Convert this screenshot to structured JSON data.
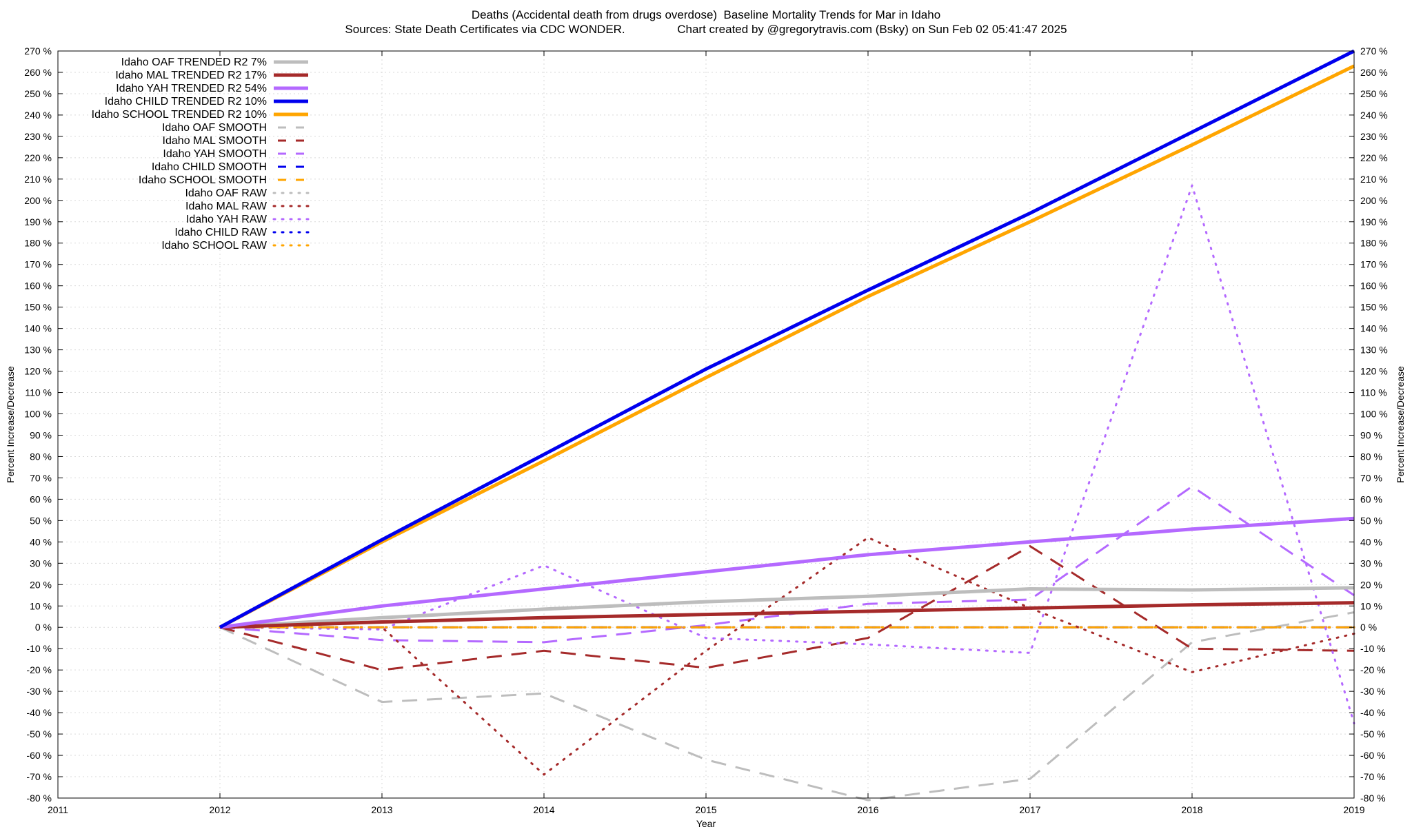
{
  "title_line1": "Deaths (Accidental death from drugs overdose)  Baseline Mortality Trends for Mar in Idaho",
  "title_line2": "Sources: State Death Certificates via CDC WONDER.                Chart created by @gregorytravis.com (Bsky) on Sun Feb 02 05:41:47 2025",
  "chart_data": {
    "type": "line",
    "xlabel": "Year",
    "ylabel": "Percent Increase/Decrease",
    "y2label": "Percent Increase/Decrease",
    "xlim": [
      2011,
      2019
    ],
    "ylim": [
      -80,
      270
    ],
    "x_ticks": [
      "2011",
      "2012",
      "2013",
      "2014",
      "2015",
      "2016",
      "2017",
      "2018",
      "2019"
    ],
    "y_ticks": [
      "270 %",
      "260 %",
      "250 %",
      "240 %",
      "230 %",
      "220 %",
      "210 %",
      "200 %",
      "190 %",
      "180 %",
      "170 %",
      "160 %",
      "150 %",
      "140 %",
      "130 %",
      "120 %",
      "110 %",
      "100 %",
      "90 %",
      "80 %",
      "70 %",
      "60 %",
      "50 %",
      "40 %",
      "30 %",
      "20 %",
      "10 %",
      "0 %",
      "-10 %",
      "-20 %",
      "-30 %",
      "-40 %",
      "-50 %",
      "-60 %",
      "-70 %",
      "-80 %"
    ],
    "grid": true,
    "legend_position": "top-left",
    "x": [
      2012,
      2013,
      2014,
      2015,
      2016,
      2017,
      2018,
      2019
    ],
    "series": [
      {
        "name": "Idaho OAF TRENDED R2  7%",
        "style": "solid",
        "color": "#bdbdbd",
        "values": [
          0,
          4.5,
          8.5,
          12,
          14.5,
          18,
          17.5,
          18.5
        ]
      },
      {
        "name": "Idaho MAL TRENDED R2  17%",
        "style": "solid",
        "color": "#a52a2a",
        "values": [
          0,
          2.5,
          4.5,
          6,
          7.5,
          9,
          10.5,
          11.5
        ]
      },
      {
        "name": "Idaho YAH TRENDED R2  54%",
        "style": "solid",
        "color": "#b469ff",
        "values": [
          0,
          10,
          18,
          26,
          34,
          40,
          46,
          51
        ]
      },
      {
        "name": "Idaho CHILD TRENDED R2  10%",
        "style": "solid",
        "color": "#0000ee",
        "values": [
          0,
          41,
          81,
          121,
          158,
          194,
          232,
          270
        ]
      },
      {
        "name": "Idaho SCHOOL TRENDED R2  10%",
        "style": "solid",
        "color": "#ffa500",
        "values": [
          0,
          40,
          78,
          117,
          155,
          190,
          226,
          263
        ]
      },
      {
        "name": "Idaho OAF SMOOTH",
        "style": "dashed",
        "color": "#bdbdbd",
        "values": [
          0,
          -35,
          -31,
          -62,
          -81,
          -71,
          -7,
          7
        ]
      },
      {
        "name": "Idaho MAL SMOOTH",
        "style": "dashed",
        "color": "#a52a2a",
        "values": [
          0,
          -20,
          -11,
          -19,
          -5,
          38,
          -10,
          -11
        ]
      },
      {
        "name": "Idaho YAH SMOOTH",
        "style": "dashed",
        "color": "#b469ff",
        "values": [
          0,
          -6,
          -7,
          1,
          11,
          13,
          66,
          15
        ]
      },
      {
        "name": "Idaho CHILD SMOOTH",
        "style": "dashed",
        "color": "#0000ee",
        "values": [
          0,
          0,
          0,
          0,
          0,
          0,
          0,
          0
        ]
      },
      {
        "name": "Idaho SCHOOL SMOOTH",
        "style": "dashed",
        "color": "#ffa500",
        "values": [
          0,
          0,
          0,
          0,
          0,
          0,
          0,
          0
        ]
      },
      {
        "name": "Idaho OAF RAW",
        "style": "dotted",
        "color": "#bdbdbd",
        "values": [
          0,
          0,
          0,
          0,
          0,
          0,
          0,
          0
        ]
      },
      {
        "name": "Idaho MAL RAW",
        "style": "dotted",
        "color": "#a52a2a",
        "values": [
          0,
          0,
          -69,
          -11,
          42,
          9,
          -21,
          -3
        ]
      },
      {
        "name": "Idaho YAH RAW",
        "style": "dotted",
        "color": "#b469ff",
        "values": [
          0,
          -1,
          29,
          -5,
          -8,
          -12,
          207,
          -45
        ]
      },
      {
        "name": "Idaho CHILD RAW",
        "style": "dotted",
        "color": "#0000ee",
        "values": [
          0,
          0,
          0,
          0,
          0,
          0,
          0,
          0
        ]
      },
      {
        "name": "Idaho SCHOOL RAW",
        "style": "dotted",
        "color": "#ffa500",
        "values": [
          0,
          0,
          0,
          0,
          0,
          0,
          0,
          0
        ]
      }
    ]
  }
}
